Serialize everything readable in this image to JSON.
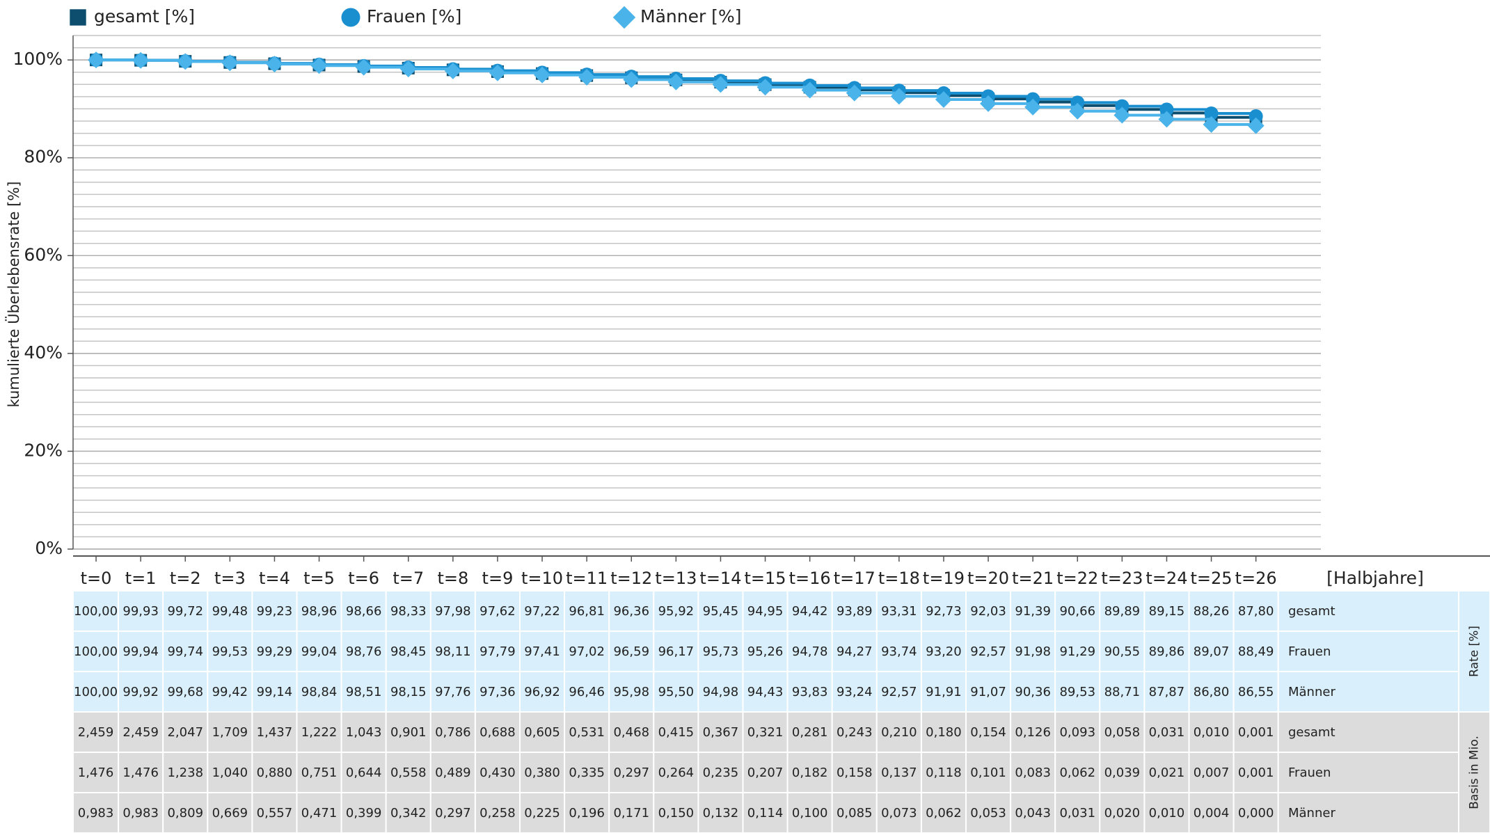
{
  "chart_data": {
    "type": "step_line",
    "y_label": "kumulierte Überlebensrate [%]",
    "x_label": "[Halbjahre]",
    "categories": [
      "t=0",
      "t=1",
      "t=2",
      "t=3",
      "t=4",
      "t=5",
      "t=6",
      "t=7",
      "t=8",
      "t=9",
      "t=10",
      "t=11",
      "t=12",
      "t=13",
      "t=14",
      "t=15",
      "t=16",
      "t=17",
      "t=18",
      "t=19",
      "t=20",
      "t=21",
      "t=22",
      "t=23",
      "t=24",
      "t=25",
      "t=26"
    ],
    "ylim": [
      0,
      105
    ],
    "yticks": [
      {
        "value": 0,
        "label": "0%"
      },
      {
        "value": 20,
        "label": "20%"
      },
      {
        "value": 40,
        "label": "40%"
      },
      {
        "value": 60,
        "label": "60%"
      },
      {
        "value": 80,
        "label": "80%"
      },
      {
        "value": 100,
        "label": "100%"
      }
    ],
    "grid": true,
    "minor_grid_step": 2.5,
    "series": [
      {
        "name": "gesamt [%]",
        "row_label": "gesamt",
        "color": "#0d4d6e",
        "marker": "square",
        "values": [
          100,
          99.93,
          99.72,
          99.48,
          99.23,
          98.96,
          98.66,
          98.33,
          97.98,
          97.62,
          97.22,
          96.81,
          96.36,
          95.92,
          95.45,
          94.95,
          94.42,
          93.89,
          93.31,
          92.73,
          92.03,
          91.39,
          90.66,
          89.89,
          89.15,
          88.26,
          87.8
        ],
        "value_labels": [
          "100,00",
          "99,93",
          "99,72",
          "99,48",
          "99,23",
          "98,96",
          "98,66",
          "98,33",
          "97,98",
          "97,62",
          "97,22",
          "96,81",
          "96,36",
          "95,92",
          "95,45",
          "94,95",
          "94,42",
          "93,89",
          "93,31",
          "92,73",
          "92,03",
          "91,39",
          "90,66",
          "89,89",
          "89,15",
          "88,26",
          "87,80"
        ]
      },
      {
        "name": "Frauen [%]",
        "row_label": "Frauen",
        "color": "#1a8fd0",
        "marker": "circle",
        "values": [
          100,
          99.94,
          99.74,
          99.53,
          99.29,
          99.04,
          98.76,
          98.45,
          98.11,
          97.79,
          97.41,
          97.02,
          96.59,
          96.17,
          95.73,
          95.26,
          94.78,
          94.27,
          93.74,
          93.2,
          92.57,
          91.98,
          91.29,
          90.55,
          89.86,
          89.07,
          88.49
        ],
        "value_labels": [
          "100,00",
          "99,94",
          "99,74",
          "99,53",
          "99,29",
          "99,04",
          "98,76",
          "98,45",
          "98,11",
          "97,79",
          "97,41",
          "97,02",
          "96,59",
          "96,17",
          "95,73",
          "95,26",
          "94,78",
          "94,27",
          "93,74",
          "93,20",
          "92,57",
          "91,98",
          "91,29",
          "90,55",
          "89,86",
          "89,07",
          "88,49"
        ]
      },
      {
        "name": "Männer [%]",
        "row_label": "Männer",
        "color": "#4ab3ea",
        "marker": "diamond",
        "values": [
          100,
          99.92,
          99.68,
          99.42,
          99.14,
          98.84,
          98.51,
          98.15,
          97.76,
          97.36,
          96.92,
          96.46,
          95.98,
          95.5,
          94.98,
          94.43,
          93.83,
          93.24,
          92.57,
          91.91,
          91.07,
          90.36,
          89.53,
          88.71,
          87.87,
          86.8,
          86.55
        ],
        "value_labels": [
          "100,00",
          "99,92",
          "99,68",
          "99,42",
          "99,14",
          "98,84",
          "98,51",
          "98,15",
          "97,76",
          "97,36",
          "96,92",
          "96,46",
          "95,98",
          "95,50",
          "94,98",
          "94,43",
          "93,83",
          "93,24",
          "92,57",
          "91,91",
          "91,07",
          "90,36",
          "89,53",
          "88,71",
          "87,87",
          "86,80",
          "86,55"
        ]
      }
    ],
    "rate_label": "Rate [%]",
    "basis_label": "Basis in Mio.",
    "basis": [
      {
        "row_label": "gesamt",
        "values": [
          "2,459",
          "2,459",
          "2,047",
          "1,709",
          "1,437",
          "1,222",
          "1,043",
          "0,901",
          "0,786",
          "0,688",
          "0,605",
          "0,531",
          "0,468",
          "0,415",
          "0,367",
          "0,321",
          "0,281",
          "0,243",
          "0,210",
          "0,180",
          "0,154",
          "0,126",
          "0,093",
          "0,058",
          "0,031",
          "0,010",
          "0,001"
        ]
      },
      {
        "row_label": "Frauen",
        "values": [
          "1,476",
          "1,476",
          "1,238",
          "1,040",
          "0,880",
          "0,751",
          "0,644",
          "0,558",
          "0,489",
          "0,430",
          "0,380",
          "0,335",
          "0,297",
          "0,264",
          "0,235",
          "0,207",
          "0,182",
          "0,158",
          "0,137",
          "0,118",
          "0,101",
          "0,083",
          "0,062",
          "0,039",
          "0,021",
          "0,007",
          "0,001"
        ]
      },
      {
        "row_label": "Männer",
        "values": [
          "0,983",
          "0,983",
          "0,809",
          "0,669",
          "0,557",
          "0,471",
          "0,399",
          "0,342",
          "0,297",
          "0,258",
          "0,225",
          "0,196",
          "0,171",
          "0,150",
          "0,132",
          "0,114",
          "0,100",
          "0,085",
          "0,073",
          "0,062",
          "0,053",
          "0,043",
          "0,031",
          "0,020",
          "0,010",
          "0,004",
          "0,000"
        ]
      }
    ]
  }
}
